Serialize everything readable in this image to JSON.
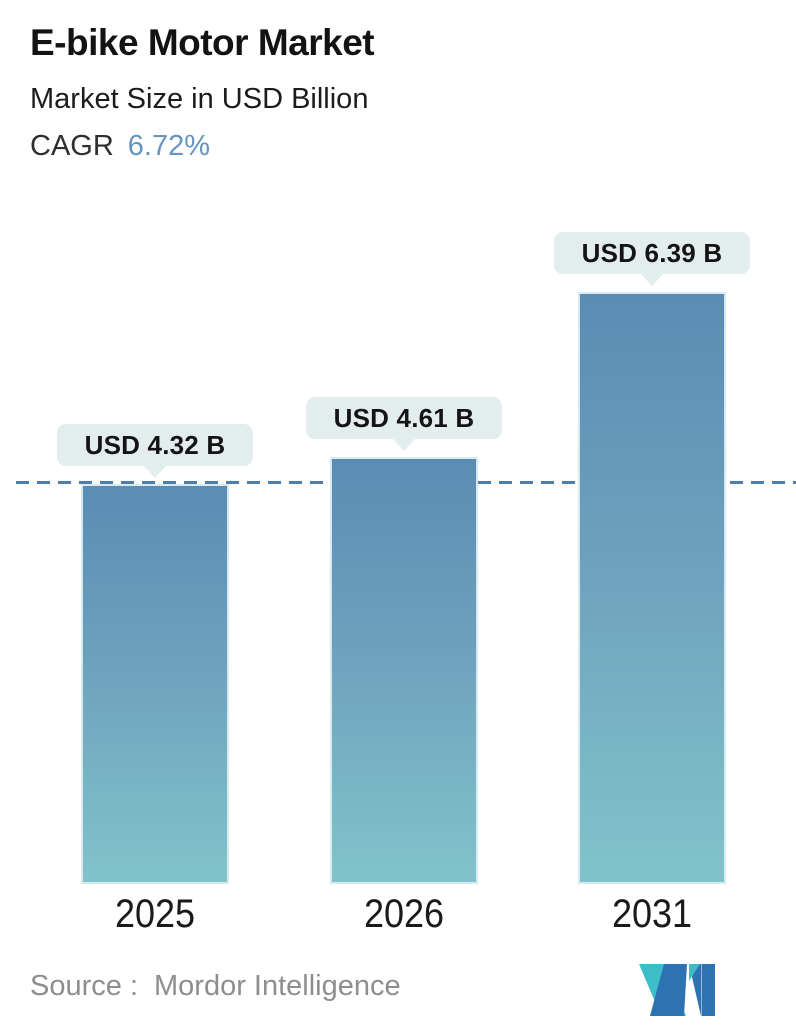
{
  "header": {
    "title": "E-bike Motor Market",
    "subtitle": "Market Size in USD Billion",
    "cagr_label": "CAGR",
    "cagr_value": "6.72%"
  },
  "chart_data": {
    "type": "bar",
    "categories": [
      "2025",
      "2026",
      "2031"
    ],
    "values": [
      4.32,
      4.61,
      6.39
    ],
    "value_labels": [
      "USD 4.32 B",
      "USD 4.61 B",
      "USD 6.39 B"
    ],
    "unit": "USD Billion",
    "title": "E-bike Motor Market",
    "subtitle": "Market Size in USD Billion",
    "cagr": "6.72%",
    "reference_line_value": 4.32,
    "ylim": [
      0,
      6.39
    ],
    "grid": false,
    "legend": false,
    "bar_gradient_top": "#5b8cb5",
    "bar_gradient_bottom": "#82c3ca",
    "reference_line_color": "#4d7ea9",
    "bubble_background": "#e4edee",
    "cagr_accent_color": "#6594bf"
  },
  "footer": {
    "source_label": "Source :",
    "source_value": "Mordor Intelligence",
    "logo_name": "mordor-intelligence-logo",
    "logo_blue": "#2d72b2",
    "logo_teal": "#3bbec8",
    "source_text_color": "#8e8e8e"
  }
}
